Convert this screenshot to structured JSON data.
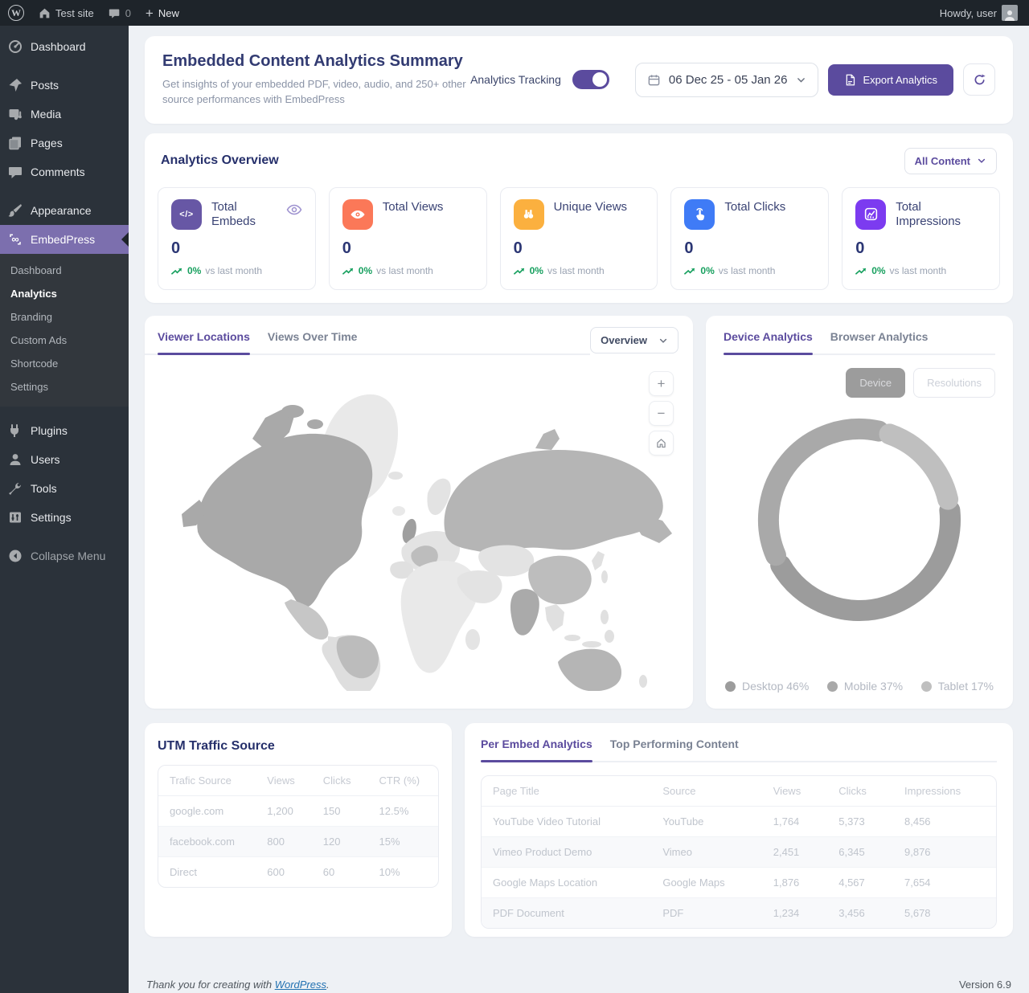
{
  "admin_bar": {
    "wp_glyph": "W",
    "site_name": "Test site",
    "comments_count": "0",
    "new_label": "New",
    "howdy": "Howdy, user"
  },
  "sidebar": {
    "items": [
      "Dashboard",
      "Posts",
      "Media",
      "Pages",
      "Comments",
      "Appearance"
    ],
    "embedpress_label": "EmbedPress",
    "submenu": [
      "Dashboard",
      "Analytics",
      "Branding",
      "Custom Ads",
      "Shortcode",
      "Settings"
    ],
    "bottom": [
      "Plugins",
      "Users",
      "Tools",
      "Settings"
    ],
    "collapse": "Collapse Menu"
  },
  "header": {
    "title": "Embedded Content Analytics Summary",
    "subtitle": "Get insights of your embedded PDF, video, audio, and 250+ other source performances with EmbedPress",
    "tracking_label": "Analytics Tracking",
    "date_range": "06 Dec 25 - 05 Jan 26",
    "export_label": "Export Analytics"
  },
  "overview": {
    "title": "Analytics Overview",
    "filter_label": "All Content",
    "code_glyph": "</>",
    "cards": [
      {
        "title": "Total Embeds",
        "value": "0",
        "change": "0%",
        "vs": "vs last month",
        "color": "#6757a5"
      },
      {
        "title": "Total Views",
        "value": "0",
        "change": "0%",
        "vs": "vs last month",
        "color": "#fb7858"
      },
      {
        "title": "Unique Views",
        "value": "0",
        "change": "0%",
        "vs": "vs last month",
        "color": "#fbb03f"
      },
      {
        "title": "Total Clicks",
        "value": "0",
        "change": "0%",
        "vs": "vs last month",
        "color": "#3f7bf6"
      },
      {
        "title": "Total Impressions",
        "value": "0",
        "change": "0%",
        "vs": "vs last month",
        "color": "#7c3bf0"
      }
    ]
  },
  "locations": {
    "tabs": [
      "Viewer Locations",
      "Views Over Time"
    ],
    "dropdown": "Overview",
    "zoom_in": "+",
    "zoom_out": "−"
  },
  "device_analytics": {
    "tabs": [
      "Device Analytics",
      "Browser Analytics"
    ],
    "buttons": [
      "Device",
      "Resolutions"
    ],
    "chart_data": {
      "type": "pie",
      "categories": [
        "Desktop",
        "Mobile",
        "Tablet"
      ],
      "values": [
        46,
        37,
        17
      ],
      "colors": [
        "#9c9c9c",
        "#a9a9a9",
        "#bfbfbf"
      ],
      "legend": [
        "Desktop 46%",
        "Mobile 37%",
        "Tablet 17%"
      ],
      "legend_position": "bottom"
    }
  },
  "utm": {
    "title": "UTM Traffic Source",
    "headers": [
      "Trafic Source",
      "Views",
      "Clicks",
      "CTR (%)"
    ],
    "rows": [
      [
        "google.com",
        "1,200",
        "150",
        "12.5%"
      ],
      [
        "facebook.com",
        "800",
        "120",
        "15%"
      ],
      [
        "Direct",
        "600",
        "60",
        "10%"
      ]
    ]
  },
  "embeds_table": {
    "tabs": [
      "Per Embed Analytics",
      "Top Performing Content"
    ],
    "headers": [
      "Page Title",
      "Source",
      "Views",
      "Clicks",
      "Impressions"
    ],
    "rows": [
      [
        "YouTube Video Tutorial",
        "YouTube",
        "1,764",
        "5,373",
        "8,456"
      ],
      [
        "Vimeo Product Demo",
        "Vimeo",
        "2,451",
        "6,345",
        "9,876"
      ],
      [
        "Google Maps Location",
        "Google Maps",
        "1,876",
        "4,567",
        "7,654"
      ],
      [
        "PDF Document",
        "PDF",
        "1,234",
        "3,456",
        "5,678"
      ]
    ]
  },
  "footer": {
    "thanks_prefix": "Thank you for creating with ",
    "link": "WordPress",
    "suffix": ".",
    "version": "Version 6.9"
  }
}
